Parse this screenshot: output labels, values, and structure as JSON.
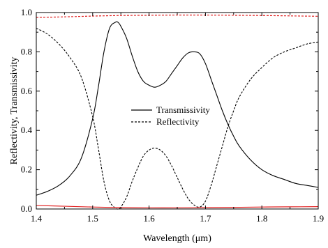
{
  "chart_data": {
    "type": "line",
    "title": "",
    "xlabel": "Wavelength (μm)",
    "ylabel": "Reflectivity, Transmissivity",
    "xlim": [
      1.4,
      1.9
    ],
    "ylim": [
      0.0,
      1.0
    ],
    "xticks": [
      1.4,
      1.5,
      1.6,
      1.7,
      1.8,
      1.9
    ],
    "xtick_labels": [
      "1.4",
      "1.5",
      "1.6",
      "1.7",
      "1.8",
      "1.9"
    ],
    "yticks": [
      0.0,
      0.2,
      0.4,
      0.6,
      0.8,
      1.0
    ],
    "ytick_labels": [
      "0.0",
      "0.2",
      "0.4",
      "0.6",
      "0.8",
      "1.0"
    ],
    "grid": false,
    "legend_position": "center",
    "series": [
      {
        "name": "Transmissivity",
        "color": "#000000",
        "style": "solid",
        "x": [
          1.4,
          1.42,
          1.44,
          1.46,
          1.48,
          1.5,
          1.51,
          1.52,
          1.53,
          1.54,
          1.545,
          1.55,
          1.56,
          1.57,
          1.58,
          1.59,
          1.6,
          1.61,
          1.62,
          1.63,
          1.64,
          1.65,
          1.66,
          1.67,
          1.68,
          1.69,
          1.7,
          1.71,
          1.72,
          1.73,
          1.74,
          1.75,
          1.76,
          1.78,
          1.8,
          1.82,
          1.84,
          1.86,
          1.88,
          1.9
        ],
        "y": [
          0.07,
          0.09,
          0.12,
          0.17,
          0.26,
          0.46,
          0.62,
          0.8,
          0.92,
          0.95,
          0.95,
          0.93,
          0.87,
          0.78,
          0.7,
          0.65,
          0.63,
          0.62,
          0.63,
          0.65,
          0.69,
          0.73,
          0.77,
          0.795,
          0.8,
          0.79,
          0.74,
          0.66,
          0.58,
          0.5,
          0.43,
          0.37,
          0.32,
          0.25,
          0.2,
          0.17,
          0.15,
          0.13,
          0.12,
          0.11
        ]
      },
      {
        "name": "Reflectivity",
        "color": "#000000",
        "style": "dashed",
        "x": [
          1.4,
          1.42,
          1.44,
          1.46,
          1.48,
          1.5,
          1.51,
          1.52,
          1.53,
          1.54,
          1.545,
          1.55,
          1.56,
          1.57,
          1.58,
          1.59,
          1.6,
          1.61,
          1.62,
          1.63,
          1.64,
          1.65,
          1.66,
          1.67,
          1.68,
          1.69,
          1.7,
          1.71,
          1.72,
          1.73,
          1.74,
          1.75,
          1.76,
          1.78,
          1.8,
          1.82,
          1.84,
          1.86,
          1.88,
          1.9
        ],
        "y": [
          0.92,
          0.89,
          0.84,
          0.77,
          0.67,
          0.47,
          0.31,
          0.14,
          0.04,
          0.005,
          0.0,
          0.01,
          0.06,
          0.14,
          0.21,
          0.27,
          0.3,
          0.31,
          0.3,
          0.27,
          0.22,
          0.16,
          0.1,
          0.05,
          0.02,
          0.01,
          0.04,
          0.12,
          0.22,
          0.32,
          0.42,
          0.5,
          0.57,
          0.66,
          0.72,
          0.77,
          0.8,
          0.82,
          0.84,
          0.85
        ]
      },
      {
        "name": "",
        "color": "#e02020",
        "style": "dashed",
        "x": [
          1.4,
          1.45,
          1.5,
          1.55,
          1.6,
          1.65,
          1.7,
          1.75,
          1.8,
          1.85,
          1.9
        ],
        "y": [
          0.975,
          0.978,
          0.982,
          0.985,
          0.986,
          0.987,
          0.987,
          0.986,
          0.985,
          0.983,
          0.981
        ]
      },
      {
        "name": "",
        "color": "#e02020",
        "style": "solid",
        "x": [
          1.4,
          1.45,
          1.5,
          1.55,
          1.6,
          1.65,
          1.7,
          1.75,
          1.8,
          1.85,
          1.9
        ],
        "y": [
          0.018,
          0.014,
          0.01,
          0.007,
          0.006,
          0.006,
          0.007,
          0.008,
          0.01,
          0.011,
          0.012
        ]
      }
    ]
  }
}
